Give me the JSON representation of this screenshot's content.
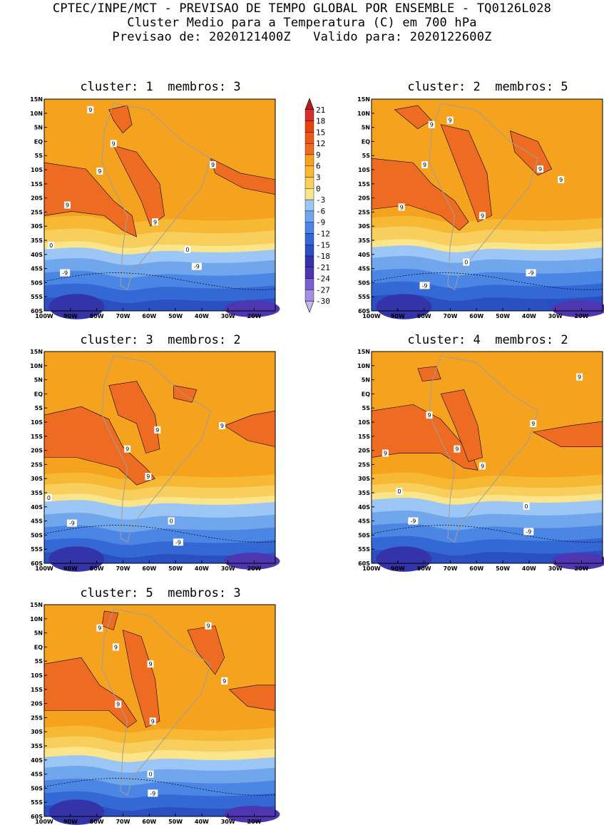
{
  "header": {
    "line1": "CPTEC/INPE/MCT - PREVISAO DE TEMPO GLOBAL POR ENSEMBLE - TQ0126L028",
    "line2": "Cluster Medio para a Temperatura (C) em 700 hPa",
    "line3": "Previsao de: 2020121400Z   Valido para: 2020122600Z"
  },
  "panels": [
    {
      "title": "cluster: 1  membros: 3"
    },
    {
      "title": "cluster: 2  membros: 5"
    },
    {
      "title": "cluster: 3  membros: 2"
    },
    {
      "title": "cluster: 4  membros: 2"
    },
    {
      "title": "cluster: 5  membros: 3"
    }
  ],
  "axes": {
    "lat_labels": [
      "15N",
      "10N",
      "5N",
      "EQ",
      "5S",
      "10S",
      "15S",
      "20S",
      "25S",
      "30S",
      "35S",
      "40S",
      "45S",
      "50S",
      "55S",
      "60S"
    ],
    "lon_labels": [
      "100W",
      "90W",
      "80W",
      "70W",
      "60W",
      "50W",
      "40W",
      "30W",
      "20W"
    ]
  },
  "colorbar": {
    "labels": [
      "21",
      "18",
      "15",
      "12",
      "9",
      "6",
      "3",
      "0",
      "-3",
      "-6",
      "-9",
      "-12",
      "-15",
      "-18",
      "-21",
      "-24",
      "-27",
      "-30"
    ],
    "colors": [
      "#b71c1c",
      "#d32f2f",
      "#e8430f",
      "#ec5a1a",
      "#ee6c22",
      "#f5a31f",
      "#f7b834",
      "#f8cf5c",
      "#fbe58a",
      "#9cc6f5",
      "#6fa6ec",
      "#4b86e4",
      "#3468d4",
      "#2a4fc2",
      "#3433a8",
      "#4d36b0",
      "#7a5fd0",
      "#a68ee2",
      "#c8b8f0",
      "#e8e0fa"
    ],
    "colors_note_hidden": ""
  },
  "contour_labels": {
    "warm": "9",
    "zero": "0",
    "cold": "-9"
  },
  "colors": {
    "coast": "#9e9e9e",
    "contour_line": "#000000"
  }
}
